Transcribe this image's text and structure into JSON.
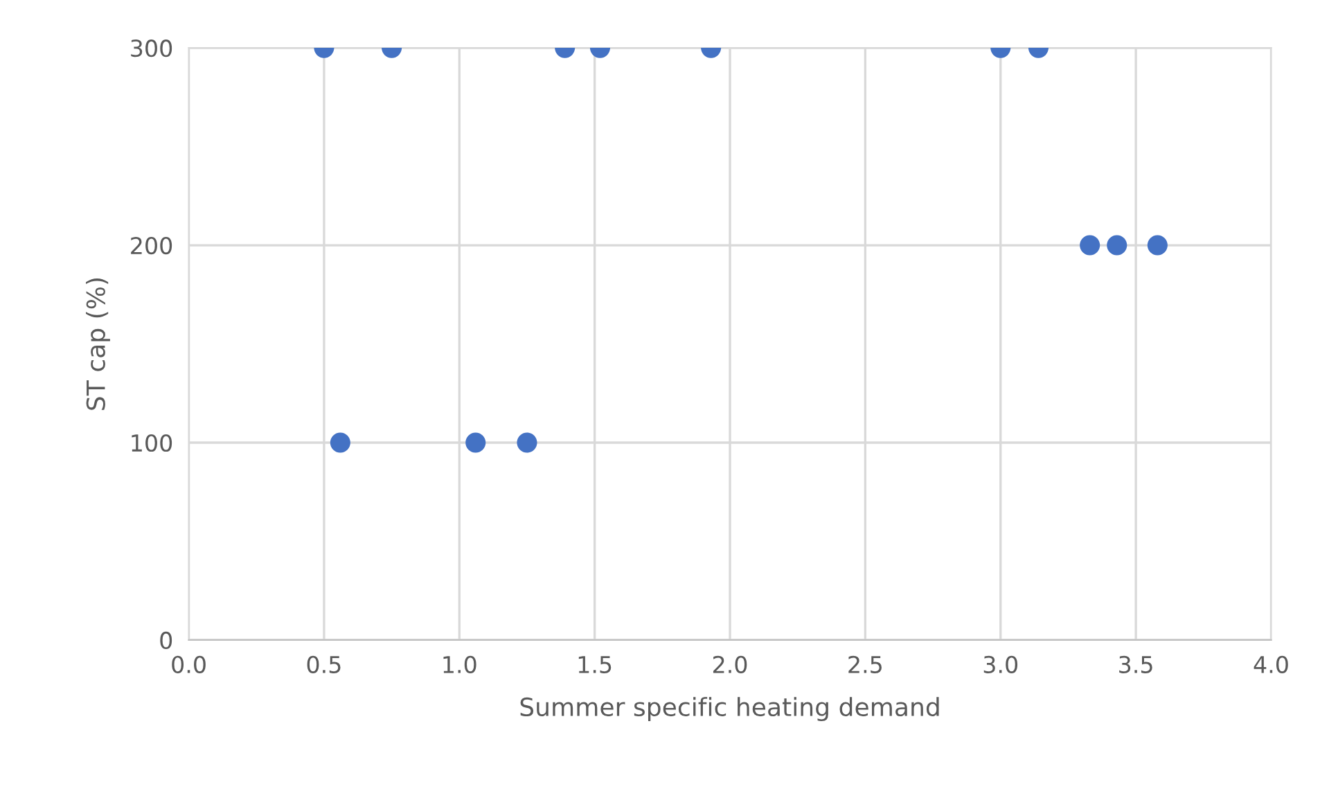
{
  "chart_data": {
    "type": "scatter",
    "xlabel": "Summer specific heating demand",
    "ylabel": "ST cap (%)",
    "x": [
      0.5,
      0.75,
      1.39,
      1.52,
      1.93,
      3.0,
      3.14,
      3.33,
      3.43,
      3.58,
      0.56,
      1.06,
      1.25
    ],
    "series": [
      {
        "color": "#4472c4",
        "values": [
          300,
          300,
          300,
          300,
          300,
          300,
          300,
          200,
          200,
          200,
          100,
          100,
          100
        ]
      }
    ],
    "xlim": [
      0,
      4
    ],
    "xticks": [
      {
        "value": 0,
        "label": "0.0"
      },
      {
        "value": 0.5,
        "label": "0.5"
      },
      {
        "value": 1,
        "label": "1.0"
      },
      {
        "value": 1.5,
        "label": "1.5"
      },
      {
        "value": 2,
        "label": "2.0"
      },
      {
        "value": 2.5,
        "label": "2.5"
      },
      {
        "value": 3,
        "label": "3.0"
      },
      {
        "value": 3.5,
        "label": "3.5"
      },
      {
        "value": 4,
        "label": "4.0"
      }
    ],
    "ylim": [
      0,
      300
    ],
    "yticks": [
      0,
      100,
      200,
      300
    ],
    "grid": true,
    "marker": "circle",
    "legend": false
  }
}
